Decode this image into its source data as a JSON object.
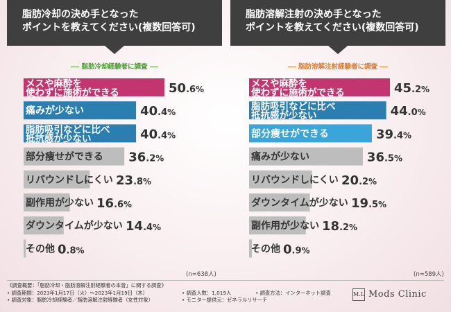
{
  "left": {
    "title_lines": [
      "脂肪冷却の決め手となった",
      "ポイントを教えてください(複数回答可)"
    ],
    "subtitle": "脂肪冷却経験者に調査",
    "n_note": "(n=638人)"
  },
  "right": {
    "title_lines": [
      "脂肪溶解注射の決め手となった",
      "ポイントを教えてください(複数回答可)"
    ],
    "subtitle": "脂肪溶解注射経験者に調査",
    "n_note": "(n=589人)"
  },
  "chart_data": [
    {
      "type": "bar",
      "orientation": "horizontal",
      "categories": [
        [
          "メスや麻酔を",
          "使わずに施術ができる"
        ],
        [
          "痛みが少ない"
        ],
        [
          "脂肪吸引などに比べ",
          "抵抗感が少ない"
        ],
        [
          "部分痩せができる"
        ],
        [
          "リバウンドしにくい"
        ],
        [
          "副作用が少ない"
        ],
        [
          "ダウンタイムが少ない"
        ],
        [
          "その他"
        ]
      ],
      "values": [
        50.6,
        40.4,
        40.4,
        36.2,
        23.8,
        16.6,
        14.4,
        0.8
      ],
      "value_labels": [
        [
          "50",
          ".6",
          "%"
        ],
        [
          "40",
          ".4",
          "%"
        ],
        [
          "40",
          ".4",
          "%"
        ],
        [
          "36",
          ".2",
          "%"
        ],
        [
          "23",
          ".8",
          "%"
        ],
        [
          "16",
          ".6",
          "%"
        ],
        [
          "14",
          ".4",
          "%"
        ],
        [
          "0",
          ".8",
          "%"
        ]
      ],
      "colors": [
        "#c2356f",
        "#2a7fb0",
        "#2a7fb0",
        "#bdbdbd",
        "#bdbdbd",
        "#bdbdbd",
        "#bdbdbd",
        "#bdbdbd"
      ],
      "xlim": [
        0,
        50.6
      ]
    },
    {
      "type": "bar",
      "orientation": "horizontal",
      "categories": [
        [
          "メスや麻酔を",
          "使わずに施術ができる"
        ],
        [
          "脂肪吸引などに比べ",
          "抵抗感が少ない"
        ],
        [
          "部分痩せができる"
        ],
        [
          "痛みが少ない"
        ],
        [
          "リバウンドしにくい"
        ],
        [
          "ダウンタイムが少ない"
        ],
        [
          "副作用が少ない"
        ],
        [
          "その他"
        ]
      ],
      "values": [
        45.2,
        44.0,
        39.4,
        36.5,
        20.2,
        19.5,
        18.2,
        0.9
      ],
      "value_labels": [
        [
          "45",
          ".2",
          "%"
        ],
        [
          "44",
          ".0",
          "%"
        ],
        [
          "39",
          ".4",
          "%"
        ],
        [
          "36",
          ".5",
          "%"
        ],
        [
          "20",
          ".2",
          "%"
        ],
        [
          "19",
          ".5",
          "%"
        ],
        [
          "18",
          ".2",
          "%"
        ],
        [
          "0",
          ".9",
          "%"
        ]
      ],
      "colors": [
        "#c2356f",
        "#2a7fb0",
        "#3aa5d8",
        "#bdbdbd",
        "#bdbdbd",
        "#bdbdbd",
        "#bdbdbd",
        "#bdbdbd"
      ],
      "xlim": [
        0,
        45.2
      ]
    }
  ],
  "footer": {
    "col1": [
      "《調査概要：「脂肪冷却・脂肪溶解注射経験者の本音」に関する調査》",
      "• 調査期間：2023年1月17日（火）〜2023年1月19日（木）",
      "• 調査対象：脂肪冷却経験者／脂肪溶解注射経験者（女性対象）"
    ],
    "col2": [
      "• 調査人数：1,019人",
      "• モニター提供元：ゼネラルリサーチ"
    ],
    "col3": [
      "• 調査方法：インターネット調査"
    ],
    "logo_mark": "M.L",
    "logo_text": "Mods Clinic"
  }
}
